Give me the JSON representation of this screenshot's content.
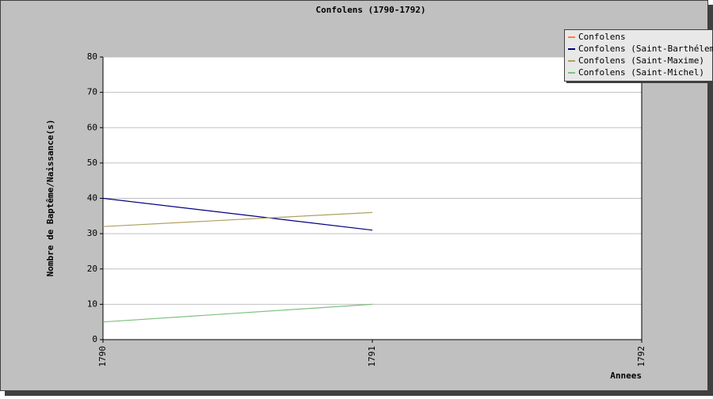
{
  "chart_data": {
    "type": "line",
    "title": "Confolens (1790-1792)",
    "x_label": "Annees",
    "y_label": "Nombre de Baptême/Naissance(s)",
    "x": [
      1790,
      1791,
      1792
    ],
    "series": [
      {
        "name": "Confolens",
        "color": "#ff8040",
        "values": [
          null,
          null,
          null
        ]
      },
      {
        "name": "Confolens (Saint-Barthélemy)",
        "color": "#000080",
        "values": [
          40,
          31,
          null
        ]
      },
      {
        "name": "Confolens (Saint-Maxime)",
        "color": "#b0a060",
        "values": [
          32,
          36,
          null
        ]
      },
      {
        "name": "Confolens (Saint-Michel)",
        "color": "#80c080",
        "values": [
          5,
          10,
          null
        ]
      }
    ],
    "xlim": [
      1790,
      1792
    ],
    "xticks": [
      1790,
      1791,
      1792
    ],
    "ylim": [
      0,
      80
    ],
    "yticks": [
      0,
      10,
      20,
      30,
      40,
      50,
      60,
      70,
      80
    ],
    "grid": true,
    "legend": "top-right"
  }
}
